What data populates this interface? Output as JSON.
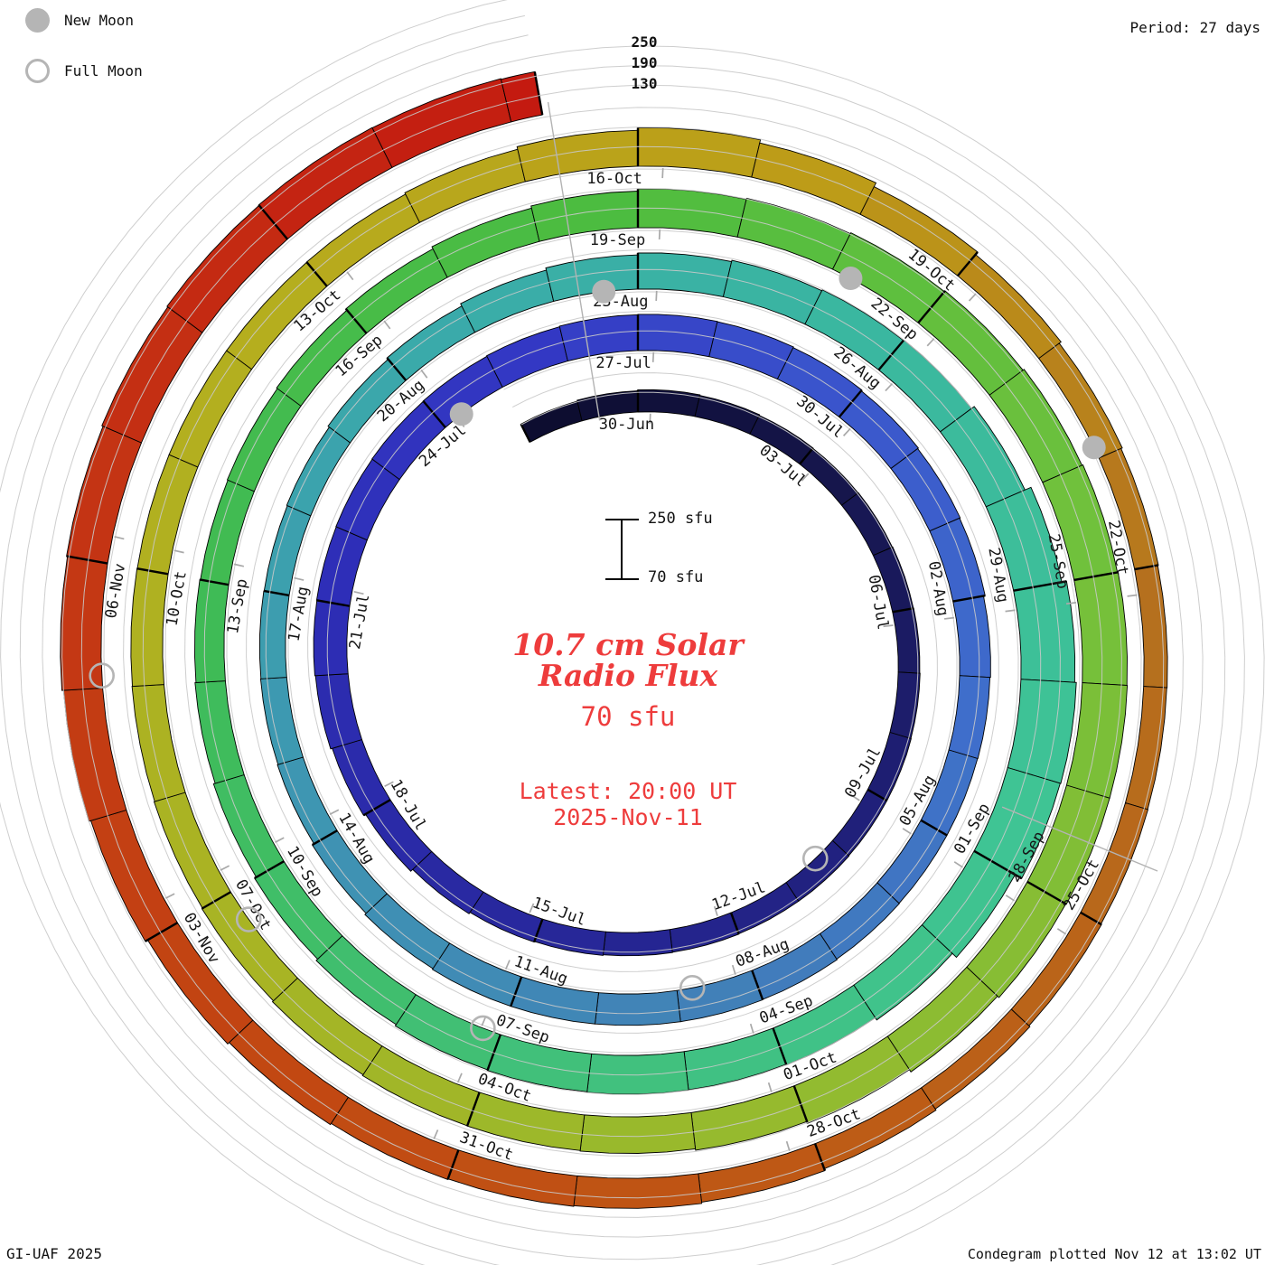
{
  "legend": {
    "new_moon_label": "New Moon",
    "full_moon_label": "Full Moon",
    "marker_color": "#b5b5b5"
  },
  "top_right": {
    "period_label": "Period: 27 days"
  },
  "radial_scale": {
    "labels": [
      "250",
      "190",
      "130"
    ]
  },
  "center_scalebar": {
    "top_label": "250 sfu",
    "bottom_label": "70 sfu"
  },
  "center_text": {
    "title_line1": "10.7 cm Solar",
    "title_line2": "Radio Flux",
    "base_value": "70 sfu",
    "latest_line1": "Latest: 20:00 UT",
    "latest_line2": "2025-Nov-11",
    "accent_color": "#ee3c3c"
  },
  "footer": {
    "left": "GI-UAF 2025",
    "right": "Condegram plotted Nov 12 at 13:02 UT"
  },
  "chart_data": {
    "type": "spiral",
    "title": "10.7 cm Solar Radio Flux",
    "units": "sfu",
    "period_days": 27,
    "start_date": "2025-06-28",
    "end_date": "2025-11-11",
    "baseline_sfu": 70,
    "scale_max_sfu": 250,
    "gridlines_sfu": [
      130,
      190,
      250
    ],
    "flux_sfu": [
      132,
      135,
      138,
      136,
      134,
      133,
      134,
      135,
      136,
      137,
      138,
      138,
      139,
      139,
      140,
      141,
      143,
      145,
      150,
      158,
      165,
      170,
      172,
      173,
      174,
      175,
      176,
      178,
      180,
      181,
      180,
      178,
      175,
      172,
      170,
      165,
      163,
      162,
      162,
      163,
      165,
      166,
      166,
      166,
      166,
      163,
      158,
      152,
      150,
      149,
      148,
      150,
      155,
      160,
      168,
      175,
      181,
      185,
      188,
      190,
      200,
      220,
      235,
      240,
      238,
      215,
      198,
      190,
      188,
      189,
      187,
      185,
      180,
      174,
      168,
      163,
      160,
      158,
      160,
      163,
      168,
      175,
      182,
      189,
      192,
      195,
      198,
      202,
      205,
      207,
      208,
      208,
      206,
      200,
      192,
      186,
      182,
      180,
      179,
      176,
      172,
      170,
      168,
      167,
      166,
      166,
      166,
      167,
      172,
      180,
      188,
      178,
      165,
      155,
      148,
      144,
      142,
      141,
      142,
      144,
      148,
      152,
      158,
      162,
      164,
      166,
      170,
      176,
      184,
      190,
      195,
      198,
      202,
      205,
      207,
      206,
      204
    ],
    "tick_labels": [
      [
        "30-Jun",
        2
      ],
      [
        "03-Jul",
        5
      ],
      [
        "06-Jul",
        8
      ],
      [
        "09-Jul",
        11
      ],
      [
        "12-Jul",
        14
      ],
      [
        "15-Jul",
        17
      ],
      [
        "18-Jul",
        20
      ],
      [
        "21-Jul",
        23
      ],
      [
        "24-Jul",
        26
      ],
      [
        "27-Jul",
        29
      ],
      [
        "30-Jul",
        32
      ],
      [
        "02-Aug",
        35
      ],
      [
        "05-Aug",
        38
      ],
      [
        "08-Aug",
        41
      ],
      [
        "11-Aug",
        44
      ],
      [
        "14-Aug",
        47
      ],
      [
        "17-Aug",
        50
      ],
      [
        "20-Aug",
        53
      ],
      [
        "23-Aug",
        56
      ],
      [
        "26-Aug",
        59
      ],
      [
        "29-Aug",
        62
      ],
      [
        "01-Sep",
        65
      ],
      [
        "04-Sep",
        68
      ],
      [
        "07-Sep",
        71
      ],
      [
        "10-Sep",
        74
      ],
      [
        "13-Sep",
        77
      ],
      [
        "16-Sep",
        80
      ],
      [
        "19-Sep",
        83
      ],
      [
        "22-Sep",
        86
      ],
      [
        "25-Sep",
        89
      ],
      [
        "28-Sep",
        92
      ],
      [
        "01-Oct",
        95
      ],
      [
        "04-Oct",
        98
      ],
      [
        "07-Oct",
        101
      ],
      [
        "10-Oct",
        104
      ],
      [
        "13-Oct",
        107
      ],
      [
        "16-Oct",
        110
      ],
      [
        "19-Oct",
        113
      ],
      [
        "22-Oct",
        116
      ],
      [
        "25-Oct",
        119
      ],
      [
        "28-Oct",
        122
      ],
      [
        "31-Oct",
        125
      ],
      [
        "03-Nov",
        128
      ],
      [
        "06-Nov",
        131
      ]
    ],
    "new_moons": [
      [
        "24-Jul",
        26.3
      ],
      [
        "23-Aug",
        55.6
      ],
      [
        "21-Sep",
        85.2
      ],
      [
        "21-Oct",
        114.9
      ]
    ],
    "full_moons": [
      [
        "10-Jul",
        12.4
      ],
      [
        "09-Aug",
        41.8
      ],
      [
        "07-Sep",
        71.2
      ],
      [
        "07-Oct",
        100.7
      ],
      [
        "05-Nov",
        130.1
      ]
    ],
    "color_stops": [
      [
        0,
        "#0d0d30"
      ],
      [
        5,
        "#16164c"
      ],
      [
        11,
        "#20207a"
      ],
      [
        17,
        "#28289e"
      ],
      [
        23,
        "#2e2eb8"
      ],
      [
        27,
        "#3338c4"
      ],
      [
        31,
        "#3a54cc"
      ],
      [
        36,
        "#3f6ecb"
      ],
      [
        41,
        "#4180b8"
      ],
      [
        47,
        "#3e96b2"
      ],
      [
        53,
        "#3aaaaa"
      ],
      [
        58,
        "#3ab7a0"
      ],
      [
        64,
        "#3fc494"
      ],
      [
        70,
        "#41c07a"
      ],
      [
        76,
        "#3fbb56"
      ],
      [
        82,
        "#4cbc40"
      ],
      [
        88,
        "#70c13c"
      ],
      [
        94,
        "#92bb30"
      ],
      [
        100,
        "#a8b424"
      ],
      [
        106,
        "#b5ae1e"
      ],
      [
        111,
        "#bd9c18"
      ],
      [
        116,
        "#b5701e"
      ],
      [
        121,
        "#bd5c16"
      ],
      [
        126,
        "#c24812"
      ],
      [
        131,
        "#c43414"
      ],
      [
        136,
        "#c41a10"
      ]
    ],
    "radial_marks": [
      {
        "angle_deg": 350.8,
        "r_inner": 265,
        "r_outer": 622
      },
      {
        "angle_deg": 112.4,
        "r_inner": 436,
        "r_outer": 622
      }
    ],
    "grid_color": "#c9c9c9",
    "tick_color": "#a9a9a9",
    "label_color": "#161616"
  }
}
